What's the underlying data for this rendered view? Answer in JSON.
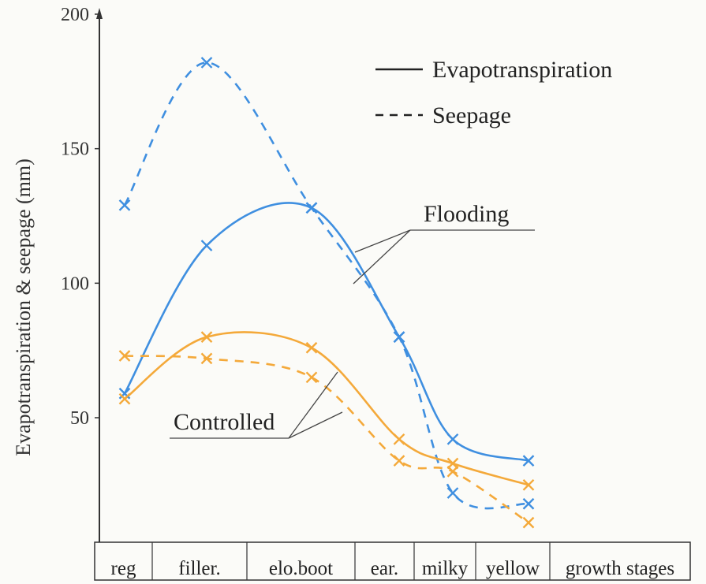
{
  "chart_data": {
    "type": "line",
    "title": "",
    "ylabel": "Evapotranspiration & seepage (mm)",
    "xlabel": "growth stages",
    "categories": [
      "reg",
      "filler.",
      "elo.boot",
      "ear.",
      "milky",
      "yellow"
    ],
    "ylim": [
      0,
      200
    ],
    "yticks": [
      50,
      100,
      150,
      200
    ],
    "grid": false,
    "legend": {
      "position": "top-right",
      "entries": [
        {
          "label": "Evapotranspiration",
          "style": "solid"
        },
        {
          "label": "Seepage",
          "style": "dashed"
        }
      ]
    },
    "annotations": [
      {
        "text": "Flooding",
        "points_to": "blue series"
      },
      {
        "text": "Controlled",
        "points_to": "orange series"
      }
    ],
    "series": [
      {
        "group": "Flooding",
        "kind": "Evapotranspiration",
        "style": "solid",
        "color": "#3f8fe0",
        "values": [
          59,
          114,
          128,
          80,
          42,
          34
        ]
      },
      {
        "group": "Flooding",
        "kind": "Seepage",
        "style": "dashed",
        "color": "#3f8fe0",
        "values": [
          129,
          182,
          128,
          80,
          22,
          18
        ]
      },
      {
        "group": "Controlled",
        "kind": "Evapotranspiration",
        "style": "solid",
        "color": "#f4a93a",
        "values": [
          57,
          80,
          76,
          42,
          33,
          25
        ]
      },
      {
        "group": "Controlled",
        "kind": "Seepage",
        "style": "dashed",
        "color": "#f4a93a",
        "values": [
          73,
          72,
          65,
          34,
          30,
          11
        ]
      }
    ]
  }
}
